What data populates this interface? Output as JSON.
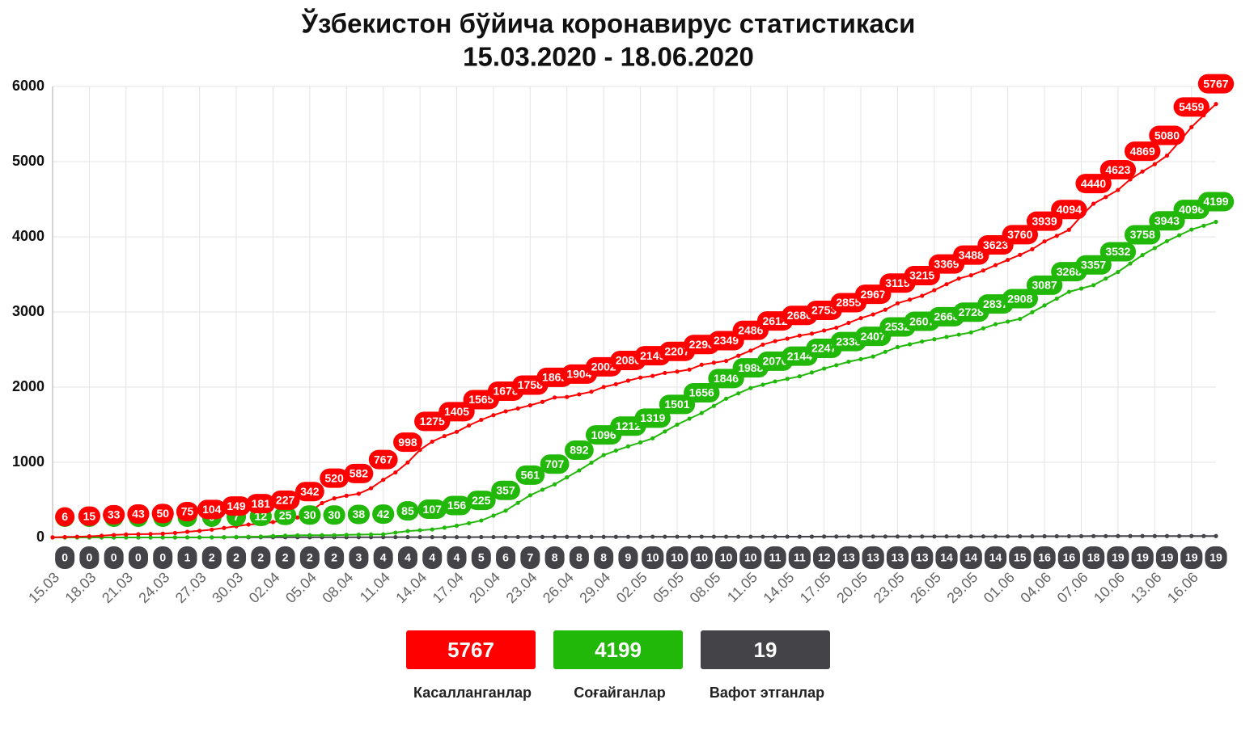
{
  "chart_data": {
    "type": "line",
    "title": "Ўзбекистон бўйича коронавирус статистикаси",
    "subtitle": "15.03.2020 - 18.06.2020",
    "categories": [
      "15.03",
      null,
      null,
      "18.03",
      null,
      null,
      "21.03",
      null,
      null,
      "24.03",
      null,
      null,
      "27.03",
      null,
      null,
      "30.03",
      null,
      null,
      "02.04",
      null,
      null,
      "05.04",
      null,
      null,
      "08.04",
      null,
      null,
      "11.04",
      null,
      null,
      "14.04",
      null,
      null,
      "17.04",
      null,
      null,
      "20.04",
      null,
      null,
      "23.04",
      null,
      null,
      "26.04",
      null,
      null,
      "29.04",
      null,
      null,
      "02.05",
      null,
      null,
      "05.05",
      null,
      null,
      "08.05",
      null,
      null,
      "11.05",
      null,
      null,
      "14.05",
      null,
      null,
      "17.05",
      null,
      null,
      "20.05",
      null,
      null,
      "23.05",
      null,
      null,
      "26.05",
      null,
      null,
      "29.05",
      null,
      null,
      "01.06",
      null,
      null,
      "04.06",
      null,
      null,
      "07.06",
      null,
      null,
      "10.06",
      null,
      null,
      "13.06",
      null,
      null,
      "16.06",
      null,
      null
    ],
    "ylim": [
      0,
      6000
    ],
    "yticks": [
      0,
      1000,
      2000,
      3000,
      4000,
      5000,
      6000
    ],
    "grid": true,
    "series": [
      {
        "name": "Касалланганлар",
        "color": "#ff0000",
        "values": [
          1,
          6,
          10,
          15,
          23,
          33,
          40,
          43,
          46,
          50,
          60,
          75,
          88,
          104,
          126,
          149,
          172,
          181,
          205,
          227,
          266,
          342,
          457,
          520,
          555,
          582,
          655,
          767,
          865,
          998,
          1165,
          1275,
          1349,
          1405,
          1490,
          1565,
          1627,
          1678,
          1716,
          1758,
          1804,
          1862,
          1869,
          1904,
          1939,
          2002,
          2039,
          2086,
          2127,
          2149,
          2189,
          2207,
          2233,
          2298,
          2325,
          2349,
          2418,
          2486,
          2566,
          2612,
          2645,
          2686,
          2712,
          2753,
          2791,
          2855,
          2918,
          2967,
          3030,
          3115,
          3164,
          3215,
          3290,
          3369,
          3444,
          3488,
          3552,
          3623,
          3693,
          3760,
          3835,
          3939,
          4013,
          4094,
          4275,
          4440,
          4529,
          4623,
          4764,
          4869,
          4966,
          5080,
          5263,
          5459,
          5617,
          5767
        ],
        "value_labels": [
          null,
          "6",
          null,
          "15",
          null,
          "33",
          null,
          "43",
          null,
          "50",
          null,
          "75",
          null,
          "104",
          null,
          "149",
          null,
          "181",
          null,
          "227",
          null,
          "342",
          null,
          "520",
          null,
          "582",
          null,
          "767",
          null,
          "998",
          null,
          "1275",
          null,
          "1405",
          null,
          "1565",
          null,
          "1678",
          null,
          "1758",
          null,
          "1862",
          null,
          "1904",
          null,
          "2002",
          null,
          "2086",
          null,
          "2149",
          null,
          "2207",
          null,
          "2298",
          null,
          "2349",
          null,
          "2486",
          null,
          "2612",
          null,
          "2686",
          null,
          "2753",
          null,
          "2855",
          null,
          "2967",
          null,
          "3115",
          null,
          "3215",
          null,
          "3369",
          null,
          "3488",
          null,
          "3623",
          null,
          "3760",
          null,
          "3939",
          null,
          "4094",
          null,
          "4440",
          null,
          "4623",
          null,
          "4869",
          null,
          "5080",
          null,
          "5459",
          null,
          "5767"
        ]
      },
      {
        "name": "Соғайганлар",
        "color": "#22b80a",
        "values": [
          0,
          0,
          0,
          0,
          0,
          0,
          0,
          0,
          0,
          0,
          0,
          0,
          0,
          0,
          3,
          7,
          10,
          12,
          19,
          25,
          28,
          30,
          30,
          30,
          34,
          38,
          40,
          42,
          64,
          85,
          96,
          107,
          130,
          156,
          190,
          225,
          290,
          357,
          460,
          561,
          635,
          707,
          800,
          892,
          995,
          1096,
          1155,
          1212,
          1265,
          1319,
          1410,
          1501,
          1580,
          1656,
          1750,
          1846,
          1917,
          1988,
          2032,
          2076,
          2110,
          2144,
          2195,
          2247,
          2292,
          2338,
          2372,
          2407,
          2470,
          2532,
          2570,
          2607,
          2637,
          2668,
          2698,
          2728,
          2782,
          2837,
          2872,
          2908,
          2997,
          3087,
          3177,
          3268,
          3312,
          3357,
          3444,
          3532,
          3645,
          3758,
          3850,
          3943,
          4020,
          4096,
          4147,
          4199
        ],
        "value_labels": [
          null,
          "0",
          null,
          "0",
          null,
          "0",
          null,
          "0",
          null,
          "0",
          null,
          "0",
          null,
          "0",
          null,
          "7",
          null,
          "12",
          null,
          "25",
          null,
          "30",
          null,
          "30",
          null,
          "38",
          null,
          "42",
          null,
          "85",
          null,
          "107",
          null,
          "156",
          null,
          "225",
          null,
          "357",
          null,
          "561",
          null,
          "707",
          null,
          "892",
          null,
          "1096",
          null,
          "1212",
          null,
          "1319",
          null,
          "1501",
          null,
          "1656",
          null,
          "1846",
          null,
          "1988",
          null,
          "2076",
          null,
          "2144",
          null,
          "2247",
          null,
          "2338",
          null,
          "2407",
          null,
          "2532",
          null,
          "2607",
          null,
          "2668",
          null,
          "2728",
          null,
          "2837",
          null,
          "2908",
          null,
          "3087",
          null,
          "3268",
          null,
          "3357",
          null,
          "3532",
          null,
          "3758",
          null,
          "3943",
          null,
          "4096",
          null,
          "4199"
        ]
      },
      {
        "name": "Вафот этганлар",
        "color": "#444448",
        "values": [
          0,
          0,
          0,
          0,
          0,
          0,
          0,
          0,
          0,
          0,
          0,
          1,
          1,
          2,
          2,
          2,
          2,
          2,
          2,
          2,
          2,
          2,
          2,
          2,
          2,
          3,
          3,
          4,
          4,
          4,
          4,
          4,
          4,
          4,
          4,
          5,
          5,
          6,
          6,
          7,
          7,
          8,
          8,
          8,
          8,
          8,
          8,
          9,
          9,
          10,
          10,
          10,
          10,
          10,
          10,
          10,
          10,
          10,
          10,
          11,
          11,
          11,
          11,
          12,
          12,
          13,
          13,
          13,
          13,
          13,
          13,
          13,
          13,
          14,
          14,
          14,
          14,
          14,
          14,
          15,
          15,
          16,
          16,
          16,
          17,
          18,
          18,
          19,
          19,
          19,
          19,
          19,
          19,
          19,
          19,
          19
        ],
        "value_labels": [
          null,
          "0",
          null,
          "0",
          null,
          "0",
          null,
          "0",
          null,
          "0",
          null,
          "1",
          null,
          "2",
          null,
          "2",
          null,
          "2",
          null,
          "2",
          null,
          "2",
          null,
          "2",
          null,
          "3",
          null,
          "4",
          null,
          "4",
          null,
          "4",
          null,
          "4",
          null,
          "5",
          null,
          "6",
          null,
          "7",
          null,
          "8",
          null,
          "8",
          null,
          "8",
          null,
          "9",
          null,
          "10",
          null,
          "10",
          null,
          "10",
          null,
          "10",
          null,
          "10",
          null,
          "11",
          null,
          "11",
          null,
          "12",
          null,
          "13",
          null,
          "13",
          null,
          "13",
          null,
          "13",
          null,
          "14",
          null,
          "14",
          null,
          "14",
          null,
          "15",
          null,
          "16",
          null,
          "16",
          null,
          "18",
          null,
          "19",
          null,
          "19",
          null,
          "19",
          null,
          "19",
          null,
          "19"
        ]
      }
    ]
  }
}
